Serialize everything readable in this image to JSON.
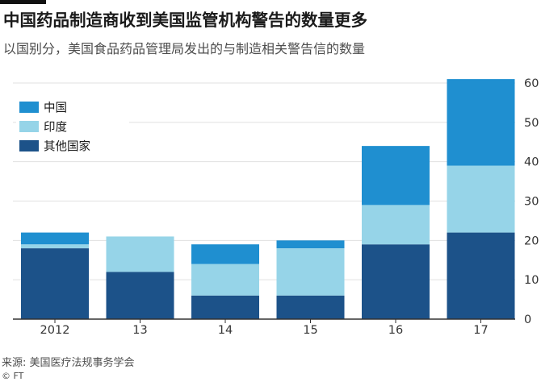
{
  "header": {
    "title": "中国药品制造商收到美国监管机构警告的数量更多",
    "subtitle": "以国别分，美国食品药品管理局发出的与制造相关警告信的数量"
  },
  "footer": {
    "source": "来源: 美国医疗法规事务学会",
    "credit": "© FT"
  },
  "colors": {
    "china": "#1f8fd0",
    "india": "#96d4e8",
    "other": "#1c5289",
    "grid": "#e0e0e0",
    "axis": "#333333"
  },
  "chart_data": {
    "type": "bar",
    "stacked": true,
    "categories": [
      "2012",
      "13",
      "14",
      "15",
      "16",
      "17"
    ],
    "series": [
      {
        "name": "其他国家",
        "color": "#1c5289",
        "values": [
          18,
          12,
          6,
          6,
          19,
          22
        ]
      },
      {
        "name": "印度",
        "color": "#96d4e8",
        "values": [
          1,
          9,
          8,
          12,
          10,
          17
        ]
      },
      {
        "name": "中国",
        "color": "#1f8fd0",
        "values": [
          3,
          0,
          5,
          2,
          15,
          22
        ]
      }
    ],
    "legend": {
      "position": "top-left",
      "order": [
        "中国",
        "印度",
        "其他国家"
      ]
    },
    "ylim": [
      0,
      60
    ],
    "yticks": [
      0,
      10,
      20,
      30,
      40,
      50,
      60
    ],
    "y_axis_side": "right",
    "grid": true,
    "xlabel": "",
    "ylabel": ""
  }
}
